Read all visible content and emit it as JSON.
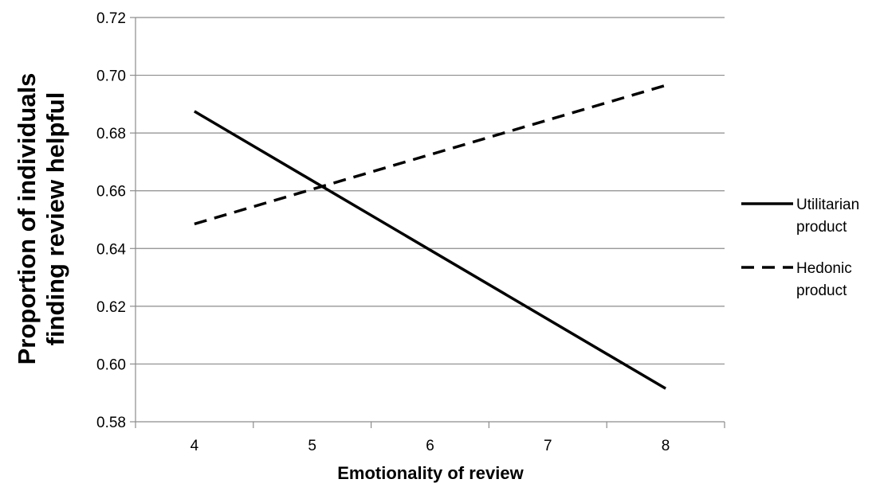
{
  "chart_data": {
    "type": "line",
    "title": "",
    "xlabel": "Emotionality of review",
    "ylabel_lines": [
      "Proportion of individuals",
      "finding review helpful"
    ],
    "x": [
      4,
      8
    ],
    "x_ticks": [
      "4",
      "5",
      "6",
      "7",
      "8"
    ],
    "y_ticks": [
      "0.58",
      "0.60",
      "0.62",
      "0.64",
      "0.66",
      "0.68",
      "0.70",
      "0.72"
    ],
    "ylim": [
      0.58,
      0.72
    ],
    "grid": "horizontal",
    "legend_position": "right",
    "series": [
      {
        "name_lines": [
          "Utilitarian",
          "product"
        ],
        "values": [
          0.6875,
          0.5915
        ],
        "style": "solid",
        "color": "#000000"
      },
      {
        "name_lines": [
          "Hedonic",
          "product"
        ],
        "values": [
          0.6485,
          0.6965
        ],
        "style": "dashed",
        "color": "#000000"
      }
    ]
  }
}
